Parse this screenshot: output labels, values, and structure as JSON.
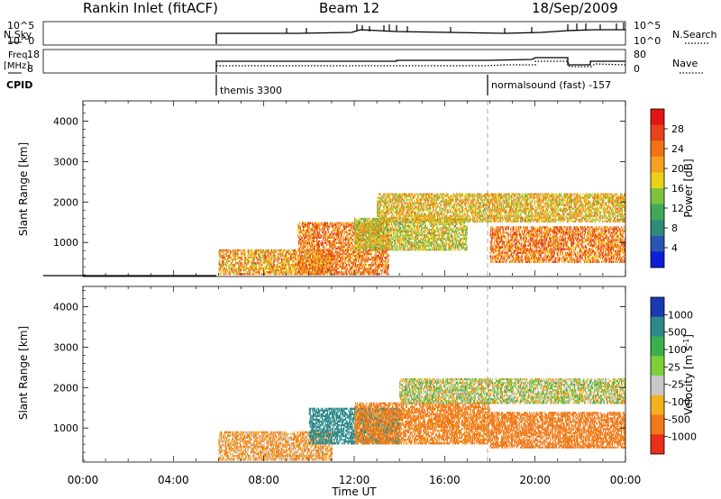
{
  "header": {
    "station": "Rankin Inlet (fitACF)",
    "beam": "Beam 12",
    "date": "18/Sep/2009"
  },
  "top_panels": {
    "nsky_label": "N.Sky",
    "nsky_ticks": [
      "10^5",
      "10^0"
    ],
    "nsearch_label": "N.Search",
    "nsearch_ticks": [
      "10^5",
      "10^0"
    ],
    "freq_label_1": "Freq.",
    "freq_label_2": "[MHz]",
    "freq_ticks": [
      "18",
      "8"
    ],
    "nave_label": "Nave",
    "nave_ticks": [
      "80",
      "0"
    ],
    "cpid_label": "CPID",
    "cpid_entries": [
      {
        "start": "06:00",
        "text": "themis 3300"
      },
      {
        "start": "18:00",
        "text": "normalsound (fast) -157"
      }
    ]
  },
  "chart_data": [
    {
      "type": "heatmap",
      "title": "",
      "xlabel": "Time UT",
      "ylabel": "Slant Range [km]",
      "xlim": [
        "00:00",
        "24:00"
      ],
      "ylim": [
        180,
        4500
      ],
      "x_ticks": [
        "00:00",
        "04:00",
        "08:00",
        "12:00",
        "16:00",
        "20:00",
        "00:00"
      ],
      "y_ticks": [
        1000,
        2000,
        3000,
        4000
      ],
      "colorbar": {
        "label": "Power [dB]",
        "ticks": [
          4,
          8,
          12,
          16,
          20,
          24,
          28
        ],
        "colors": [
          "#0b1fd6",
          "#2855b0",
          "#2f8a7a",
          "#3fa85a",
          "#7cc23c",
          "#e8d21a",
          "#f5a020",
          "#f07318",
          "#e8421a",
          "#e01515"
        ]
      },
      "regions": [
        {
          "t_start": "06:00",
          "t_end": "11:00",
          "range_start": 200,
          "range_end": 800,
          "value": 20
        },
        {
          "t_start": "09:30",
          "t_end": "13:30",
          "range_start": 200,
          "range_end": 1500,
          "value": 22
        },
        {
          "t_start": "12:00",
          "t_end": "17:00",
          "range_start": 800,
          "range_end": 1600,
          "value": 16
        },
        {
          "t_start": "13:00",
          "t_end": "24:00",
          "range_start": 1500,
          "range_end": 2200,
          "value": 18
        },
        {
          "t_start": "18:00",
          "t_end": "24:00",
          "range_start": 500,
          "range_end": 1400,
          "value": 22
        }
      ]
    },
    {
      "type": "heatmap",
      "title": "",
      "xlabel": "Time UT",
      "ylabel": "Slant Range [km]",
      "xlim": [
        "00:00",
        "24:00"
      ],
      "ylim": [
        180,
        4500
      ],
      "x_ticks": [
        "00:00",
        "04:00",
        "08:00",
        "12:00",
        "16:00",
        "20:00",
        "00:00"
      ],
      "y_ticks": [
        1000,
        2000,
        3000,
        4000
      ],
      "colorbar": {
        "label": "Velocity [m s^-1]",
        "ticks": [
          1000,
          500,
          100,
          25,
          -25,
          -100,
          -500,
          -1000
        ],
        "colors": [
          "#1a3ab0",
          "#2e8a8a",
          "#3cae4c",
          "#7ecf3a",
          "#c8c8c8",
          "#f5b020",
          "#f07a18",
          "#e8301a"
        ]
      },
      "regions": [
        {
          "t_start": "06:00",
          "t_end": "11:00",
          "range_start": 200,
          "range_end": 900,
          "value": -100
        },
        {
          "t_start": "10:00",
          "t_end": "14:00",
          "range_start": 600,
          "range_end": 1500,
          "value": 500
        },
        {
          "t_start": "12:00",
          "t_end": "18:00",
          "range_start": 600,
          "range_end": 1600,
          "value": -200
        },
        {
          "t_start": "14:00",
          "t_end": "24:00",
          "range_start": 1600,
          "range_end": 2200,
          "value": 0
        },
        {
          "t_start": "18:00",
          "t_end": "24:00",
          "range_start": 500,
          "range_end": 1400,
          "value": -300
        }
      ]
    }
  ]
}
